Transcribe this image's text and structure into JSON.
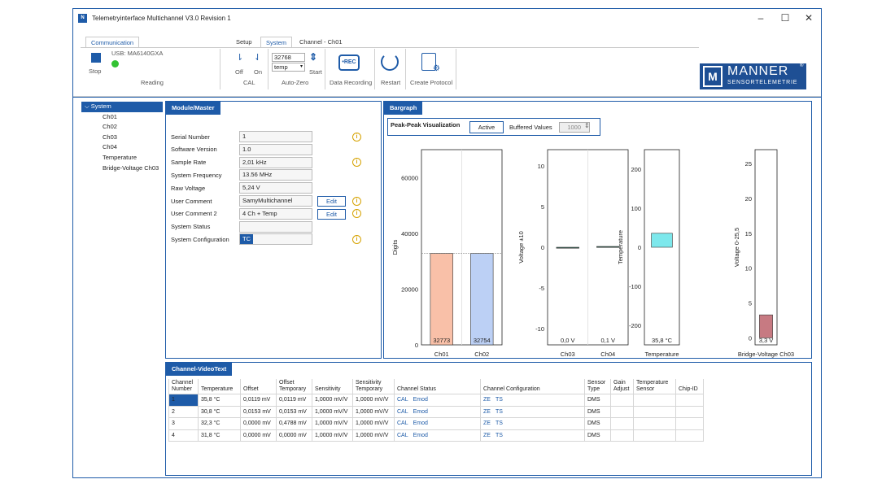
{
  "window": {
    "title": "Telemetryinterface Multichannel V3.0 Revision 1",
    "controls": [
      "–",
      "☐",
      "✕"
    ]
  },
  "ribbon": {
    "tabs": [
      "Communication",
      "Setup",
      "System",
      "Channel - Ch01"
    ],
    "usb_label": "USB: MA6140GXA",
    "stop_label": "Stop",
    "reading_label": "Reading",
    "cal_off": "Off",
    "cal_on": "On",
    "cal_label": "CAL",
    "autozero_value": "32768",
    "autozero_select": "temp",
    "autozero_start": "Start",
    "autozero_label": "Auto-Zero",
    "rec_icon_text": "•REC",
    "data_recording": "Data Recording",
    "restart": "Restart",
    "create_protocol": "Create Protocol"
  },
  "logo": {
    "name": "MANNER",
    "sub": "SENSORTELEMETRIE",
    "reg": "®"
  },
  "tree": {
    "root": "System",
    "items": [
      "Ch01",
      "Ch02",
      "Ch03",
      "Ch04",
      "Temperature",
      "Bridge-Voltage Ch03"
    ]
  },
  "module": {
    "title": "Module/Master",
    "fields": [
      {
        "label": "Serial Number",
        "value": "1"
      },
      {
        "label": "Software Version",
        "value": "1.0"
      },
      {
        "label": "Sample Rate",
        "value": "2,01 kHz"
      },
      {
        "label": "System Frequency",
        "value": "13.56 MHz"
      },
      {
        "label": "Raw Voltage",
        "value": "5,24 V"
      },
      {
        "label": "User Comment",
        "value": "SamyMultichannel"
      },
      {
        "label": "User Comment 2",
        "value": "4 Ch + Temp"
      },
      {
        "label": "System Status",
        "value": ""
      },
      {
        "label": "System Configuration",
        "value": "TC"
      }
    ],
    "edit_label": "Edit",
    "info_glyph": "i"
  },
  "bargraph": {
    "title": "Bargraph",
    "peak_label": "Peak-Peak Visualization",
    "active_label": "Active",
    "buffered_label": "Buffered Values",
    "buffered_value": "1000",
    "spin_glyph": "⇕"
  },
  "chart_data": [
    {
      "type": "bar",
      "ylabel": "Digits",
      "ylim": [
        0,
        70000
      ],
      "yticks": [
        "0",
        "20000",
        "40000",
        "60000"
      ],
      "categories": [
        "Ch01",
        "Ch02"
      ],
      "values": [
        32773,
        32754
      ],
      "value_labels": [
        "32773",
        "32754"
      ],
      "colors": [
        "#f9c0a8",
        "#bcd0f5"
      ],
      "reference_line": 32768
    },
    {
      "type": "bar",
      "ylabel": "Voltage ±10",
      "ylim": [
        -12,
        12
      ],
      "yticks": [
        "-10",
        "-5",
        "0",
        "5",
        "10"
      ],
      "categories": [
        "Ch03",
        "Ch04"
      ],
      "values": [
        0.0,
        0.1
      ],
      "value_labels": [
        "0,0 V",
        "0,1 V"
      ],
      "colors": [
        "#2f5f50",
        "#2f5f50"
      ]
    },
    {
      "type": "bar",
      "ylabel": "Temperature",
      "ylim": [
        -250,
        250
      ],
      "yticks": [
        "-200",
        "-100",
        "0",
        "100",
        "200"
      ],
      "categories": [
        "Temperature"
      ],
      "values": [
        35.8
      ],
      "value_labels": [
        "35,8 °C"
      ],
      "colors": [
        "#7de8ec"
      ]
    },
    {
      "type": "bar",
      "ylabel": "Voltage 0-25,5",
      "ylim": [
        -1,
        27
      ],
      "yticks": [
        "0",
        "5",
        "10",
        "15",
        "20",
        "25"
      ],
      "categories": [
        "Bridge-Voltage Ch03"
      ],
      "values": [
        3.3
      ],
      "value_labels": [
        "3,3 V"
      ],
      "colors": [
        "#c77a82"
      ]
    }
  ],
  "videotext": {
    "title": "Channel-VideoText",
    "headers": [
      "Channel Number",
      "Temperature",
      "Offset",
      "Offset Temporary",
      "Sensitivity",
      "Sensitivity Temporary",
      "Channel Status",
      "Channel Configuration",
      "Sensor Type",
      "Gain Adjust",
      "Temperature Sensor",
      "Chip-ID"
    ],
    "rows": [
      [
        "1",
        "35,8 °C",
        "0,0119 mV",
        "0,0119 mV",
        "1,0000 mV/V",
        "1,0000 mV/V",
        "CAL|Emod",
        "ZE|TS",
        "DMS",
        "",
        "",
        ""
      ],
      [
        "2",
        "30,8 °C",
        "0,0153 mV",
        "0,0153 mV",
        "1,0000 mV/V",
        "1,0000 mV/V",
        "CAL|Emod",
        "ZE|TS",
        "DMS",
        "",
        "",
        ""
      ],
      [
        "3",
        "32,3 °C",
        "0,0000 mV",
        "0,4788 mV",
        "1,0000 mV/V",
        "1,0000 mV/V",
        "CAL|Emod",
        "ZE|TS",
        "DMS",
        "",
        "",
        ""
      ],
      [
        "4",
        "31,8 °C",
        "0,0000 mV",
        "0,0000 mV",
        "1,0000 mV/V",
        "1,0000 mV/V",
        "CAL|Emod",
        "ZE|TS",
        "DMS",
        "",
        "",
        ""
      ]
    ]
  }
}
